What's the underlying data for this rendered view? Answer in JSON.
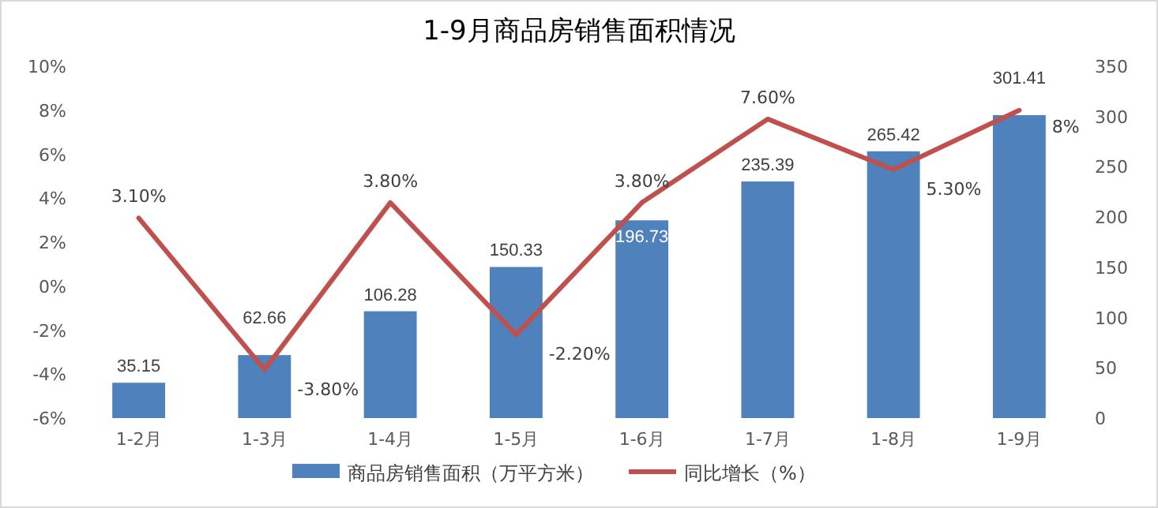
{
  "chart_data": {
    "type": "bar",
    "title": "1-9月商品房销售面积情况",
    "categories": [
      "1-2月",
      "1-3月",
      "1-4月",
      "1-5月",
      "1-6月",
      "1-7月",
      "1-8月",
      "1-9月"
    ],
    "series": [
      {
        "name": "商品房销售面积（万平方米）",
        "axis": "y2",
        "color": "#4f81bd",
        "values": [
          35.15,
          62.66,
          106.28,
          150.33,
          196.73,
          235.39,
          265.42,
          301.41
        ],
        "value_labels": [
          "35.15",
          "62.66",
          "106.28",
          "150.33",
          "196.73",
          "235.39",
          "265.42",
          "301.41"
        ]
      },
      {
        "name": "同比增长（%）",
        "type": "line",
        "axis": "y",
        "color": "#c0504d",
        "values": [
          3.1,
          -3.8,
          3.8,
          -2.2,
          3.8,
          7.6,
          5.3,
          8
        ],
        "value_labels": [
          "3.10%",
          "-3.80%",
          "3.80%",
          "-2.20%",
          "3.80%",
          "7.60%",
          "5.30%",
          "8%"
        ]
      }
    ],
    "ylim": [
      -6,
      10
    ],
    "yticks": [
      {
        "value": -6,
        "label": "-6%"
      },
      {
        "value": -4,
        "label": "-4%"
      },
      {
        "value": -2,
        "label": "-2%"
      },
      {
        "value": 0,
        "label": "0%"
      },
      {
        "value": 2,
        "label": "2%"
      },
      {
        "value": 4,
        "label": "4%"
      },
      {
        "value": 6,
        "label": "6%"
      },
      {
        "value": 8,
        "label": "8%"
      },
      {
        "value": 10,
        "label": "10%"
      }
    ],
    "y2lim": [
      0,
      350
    ],
    "y2ticks": [
      0,
      50,
      100,
      150,
      200,
      250,
      300,
      350
    ],
    "legend": "bottom"
  }
}
